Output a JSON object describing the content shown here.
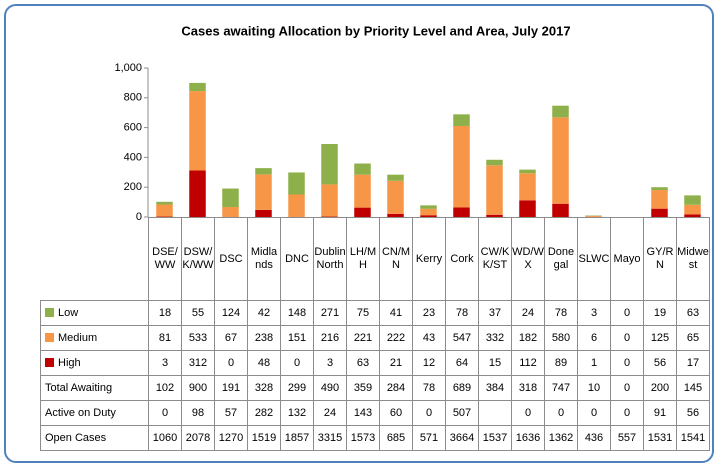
{
  "chart_data": {
    "type": "stacked_bar",
    "title": "Cases awaiting Allocation by Priority Level and Area, July 2017",
    "categories": [
      "DSE/WW",
      "DSW/K/WW",
      "DSC",
      "Midlands",
      "DNC",
      "Dublin North",
      "LH/MH",
      "CN/MN",
      "Kerry",
      "Cork",
      "CW/KK/ST",
      "WD/WX",
      "Donegal",
      "SLWC",
      "Mayo",
      "GY/RN",
      "Midwest"
    ],
    "series": [
      {
        "name": "Low",
        "color": "#8db04a",
        "values": [
          18,
          55,
          124,
          42,
          148,
          271,
          75,
          41,
          23,
          78,
          37,
          24,
          78,
          3,
          0,
          19,
          63
        ]
      },
      {
        "name": "Medium",
        "color": "#f79646",
        "values": [
          81,
          533,
          67,
          238,
          151,
          216,
          221,
          222,
          43,
          547,
          332,
          182,
          580,
          6,
          0,
          125,
          65
        ]
      },
      {
        "name": "High",
        "color": "#c00000",
        "values": [
          3,
          312,
          0,
          48,
          0,
          3,
          63,
          21,
          12,
          64,
          15,
          112,
          89,
          1,
          0,
          56,
          17
        ]
      }
    ],
    "table_rows": [
      {
        "name": "Total Awaiting",
        "values": [
          102,
          900,
          191,
          328,
          299,
          490,
          359,
          284,
          78,
          689,
          384,
          318,
          747,
          10,
          0,
          200,
          145
        ]
      },
      {
        "name": "Active on Duty",
        "values": [
          0,
          98,
          57,
          282,
          132,
          24,
          143,
          60,
          0,
          507,
          null,
          0,
          0,
          0,
          0,
          91,
          56
        ]
      },
      {
        "name": "Open Cases",
        "values": [
          1060,
          2078,
          1270,
          1519,
          1857,
          3315,
          1573,
          685,
          571,
          3664,
          1537,
          1636,
          1362,
          436,
          557,
          1531,
          1541
        ]
      }
    ],
    "ylim": [
      0,
      1000
    ],
    "yticks": [
      0,
      200,
      400,
      600,
      800,
      {
        "value": 1000,
        "label": "1,000"
      }
    ],
    "grid": false
  }
}
